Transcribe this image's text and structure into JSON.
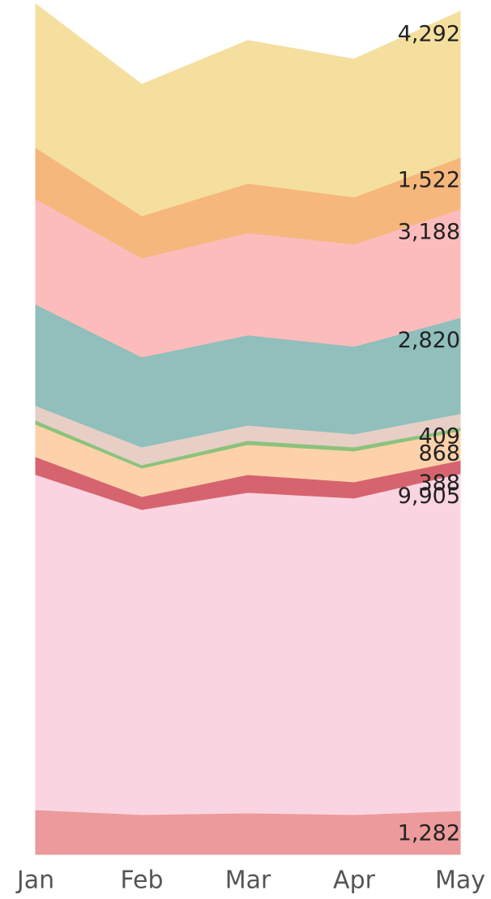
{
  "chart_data": {
    "type": "stacked-area",
    "categories": [
      "Jan",
      "Feb",
      "Mar",
      "Apr",
      "May"
    ],
    "ylim": [
      0,
      25100
    ],
    "series": [
      {
        "color": "#ec9a9b",
        "values": [
          1311,
          1168,
          1216,
          1168,
          1282
        ],
        "value_labels": [
          null,
          null,
          null,
          null,
          "1,282"
        ]
      },
      {
        "color": "#fad5e1",
        "values": [
          9846,
          8964,
          9417,
          9298,
          9905
        ],
        "value_labels": [
          null,
          null,
          null,
          null,
          "9,905"
        ]
      },
      {
        "color": "#d6646f",
        "values": [
          524,
          381,
          524,
          477,
          388
        ],
        "value_labels": [
          null,
          null,
          null,
          null,
          "388"
        ]
      },
      {
        "color": "#fdd2aa",
        "values": [
          954,
          834,
          882,
          906,
          868
        ],
        "value_labels": [
          null,
          null,
          null,
          null,
          "868"
        ]
      },
      {
        "color": "#8cc27d",
        "values": [
          119,
          95,
          119,
          119,
          95
        ]
      },
      {
        "color": "#e7cfc6",
        "values": [
          429,
          524,
          453,
          381,
          409
        ],
        "value_labels": [
          null,
          null,
          null,
          null,
          "409"
        ]
      },
      {
        "color": "#90bfbc",
        "values": [
          2980,
          2646,
          2646,
          2575,
          2820
        ],
        "value_labels": [
          null,
          null,
          null,
          null,
          "2,820"
        ]
      },
      {
        "color": "#fdbcbc",
        "values": [
          3099,
          2908,
          3004,
          3004,
          3188
        ],
        "value_labels": [
          null,
          null,
          null,
          null,
          "3,188"
        ]
      },
      {
        "color": "#f5b77c",
        "values": [
          1502,
          1240,
          1454,
          1383,
          1522
        ],
        "value_labels": [
          null,
          null,
          null,
          null,
          "1,522"
        ]
      },
      {
        "color": "#f5df9f",
        "values": [
          4220,
          3862,
          4196,
          4053,
          4292
        ],
        "value_labels": [
          null,
          null,
          null,
          null,
          "4,292"
        ]
      }
    ]
  }
}
